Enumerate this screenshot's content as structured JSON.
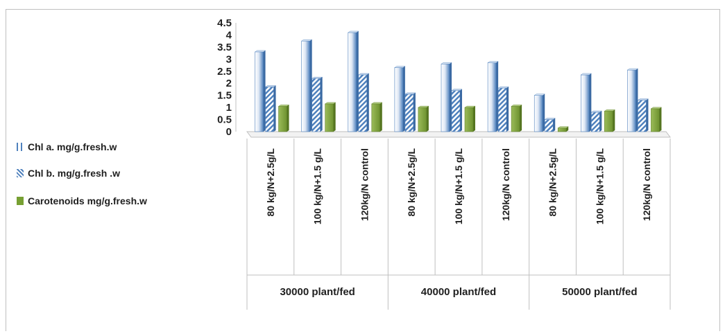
{
  "chart_data": {
    "type": "bar",
    "groups": [
      {
        "label": "30000 plant/fed",
        "categories": [
          "80 kg/N+2.5g/L",
          "100 kg/N+1.5 g/L",
          "120kg/N control"
        ]
      },
      {
        "label": "40000 plant/fed",
        "categories": [
          "80 kg/N+2.5g/L",
          "100 kg/N+1.5 g/L",
          "120kg/N control"
        ]
      },
      {
        "label": "50000 plant/fed",
        "categories": [
          "80 kg/N+2.5g/L",
          "100 kg/N+1.5 g/L",
          "120kg/N control"
        ]
      }
    ],
    "categories": [
      "80 kg/N+2.5g/L",
      "100 kg/N+1.5 g/L",
      "120kg/N control",
      "80 kg/N+2.5g/L",
      "100 kg/N+1.5 g/L",
      "120kg/N control",
      "80 kg/N+2.5g/L",
      "100 kg/N+1.5 g/L",
      "120kg/N control"
    ],
    "series": [
      {
        "name": "Chl a. mg/g.fresh.w",
        "values": [
          3.3,
          3.75,
          4.1,
          2.65,
          2.8,
          2.85,
          1.5,
          2.35,
          2.55
        ],
        "color": "#4f81bd"
      },
      {
        "name": "Chl b. mg/g.fresh .w",
        "values": [
          1.85,
          2.2,
          2.35,
          1.55,
          1.7,
          1.8,
          0.5,
          0.8,
          1.3
        ],
        "color": "#4f81bd"
      },
      {
        "name": "Carotenoids mg/g.fresh.w",
        "values": [
          1.05,
          1.15,
          1.15,
          1.0,
          1.0,
          1.05,
          0.15,
          0.85,
          0.95
        ],
        "color": "#77a033"
      }
    ],
    "yticks": [
      "0",
      "0.5",
      "1",
      "1.5",
      "2",
      "2.5",
      "3",
      "3.5",
      "4",
      "4.5"
    ],
    "ylim": [
      0,
      4.5
    ],
    "legend_position": "left",
    "grid": false
  }
}
